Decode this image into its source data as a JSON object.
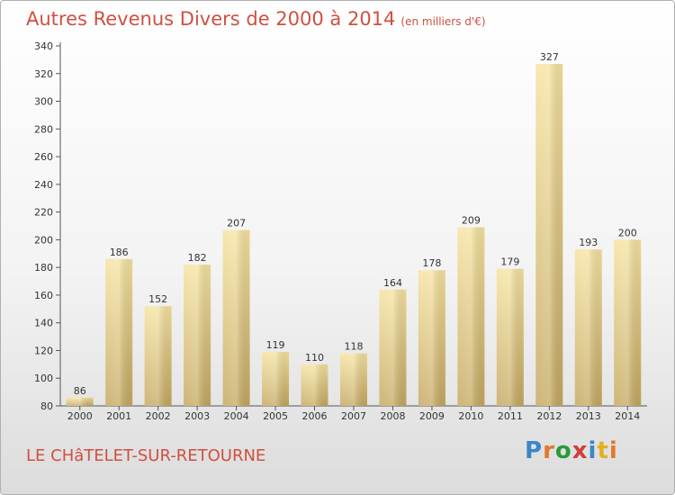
{
  "header": {
    "title": "Autres Revenus Divers de 2000 à 2014",
    "unit": "(en milliers d'€)"
  },
  "footer": {
    "city": "LE CHâTELET-SUR-RETOURNE",
    "brand": "Proxiti"
  },
  "colors": {
    "title": "#d05040",
    "bar_light": "#f6e3a0",
    "bar_dark": "#c4a860"
  },
  "chart_data": {
    "type": "bar",
    "title": "Autres Revenus Divers de 2000 à 2014",
    "categories": [
      "2000",
      "2001",
      "2002",
      "2003",
      "2004",
      "2005",
      "2006",
      "2007",
      "2008",
      "2009",
      "2010",
      "2011",
      "2012",
      "2013",
      "2014"
    ],
    "values": [
      86,
      186,
      152,
      182,
      207,
      119,
      110,
      118,
      164,
      178,
      209,
      179,
      327,
      193,
      200
    ],
    "ylim": [
      80,
      340
    ],
    "yticks": [
      80,
      100,
      120,
      140,
      160,
      180,
      200,
      220,
      240,
      260,
      280,
      300,
      320,
      340
    ],
    "grid": false,
    "legend": "none"
  }
}
